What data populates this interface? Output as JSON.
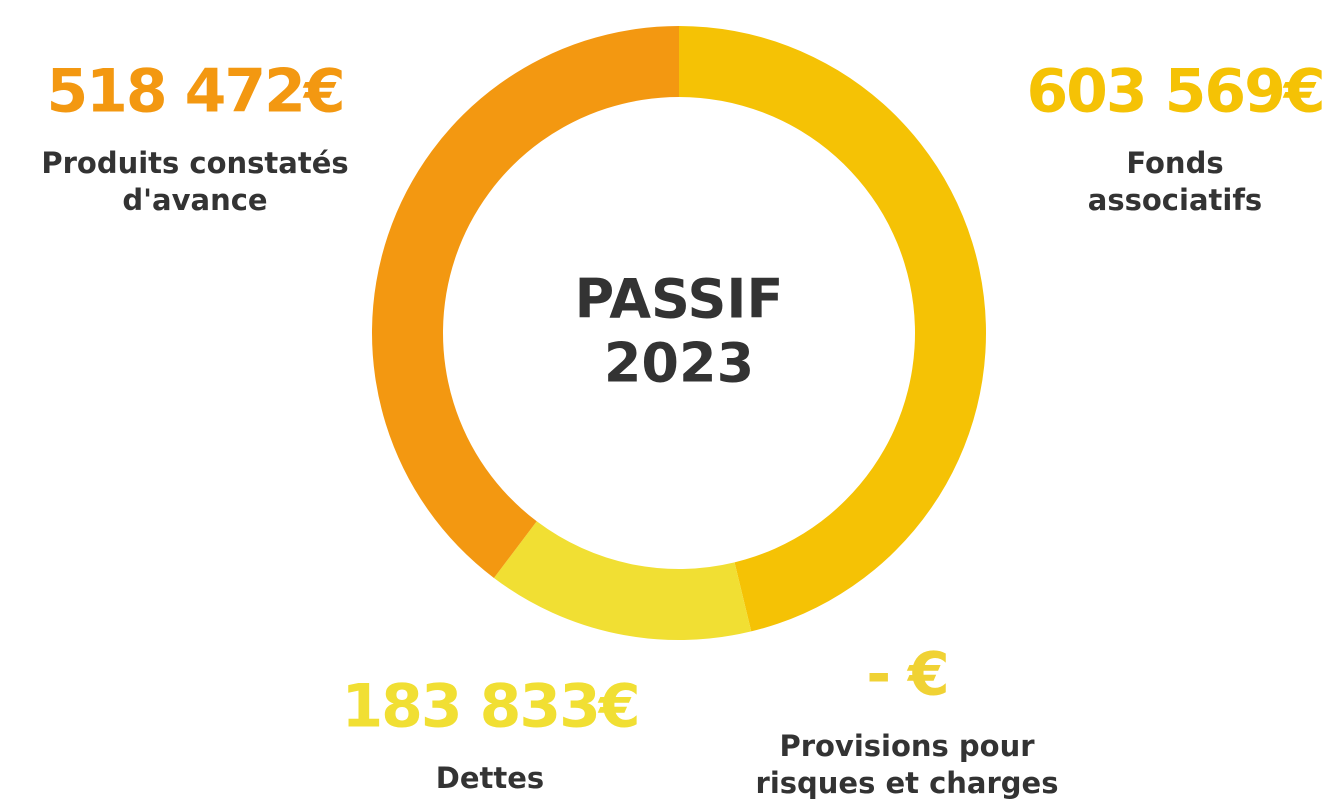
{
  "chart_data": {
    "type": "donut",
    "title": [
      "PASSIF",
      "2023"
    ],
    "categories": [
      [
        "Fonds",
        "associatifs"
      ],
      [
        "Provisions pour",
        "risques et charges"
      ],
      [
        "Dettes"
      ],
      [
        "Produits constatés",
        "d'avance"
      ]
    ],
    "values": [
      603569,
      0,
      183833,
      518472
    ],
    "value_labels": [
      "603 569€",
      "- €",
      "183 833€",
      "518 472€"
    ],
    "colors": [
      "#f5c205",
      "#f0d234",
      "#f1df33",
      "#f39811"
    ]
  }
}
